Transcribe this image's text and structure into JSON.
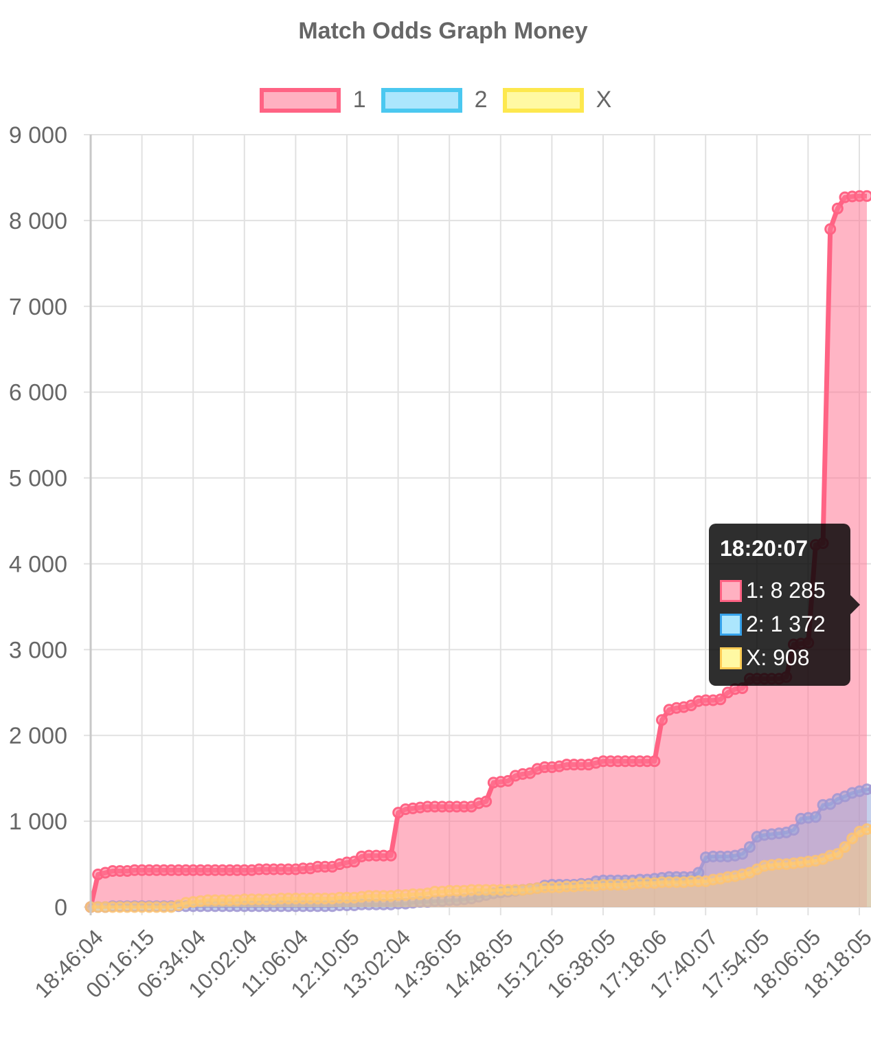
{
  "chart_data": {
    "type": "area",
    "title": "Match Odds Graph Money",
    "xlabel": "",
    "ylabel": "",
    "ylim": [
      0,
      9000
    ],
    "yticks": [
      "0",
      "1 000",
      "2 000",
      "3 000",
      "4 000",
      "5 000",
      "6 000",
      "7 000",
      "8 000",
      "9 000"
    ],
    "x_tick_labels": [
      "18:46:04",
      "00:16:15",
      "06:34:04",
      "10:02:04",
      "11:06:04",
      "12:10:05",
      "13:02:04",
      "14:36:05",
      "14:48:05",
      "15:12:05",
      "16:38:05",
      "17:18:06",
      "17:40:07",
      "17:54:05",
      "18:06:05",
      "18:18:05"
    ],
    "grid": true,
    "legend_position": "top",
    "series": [
      {
        "name": "1",
        "color": "#ff6384",
        "fill": "#ffb1c1",
        "values": [
          0,
          380,
          400,
          420,
          420,
          420,
          430,
          430,
          430,
          430,
          430,
          430,
          430,
          430,
          430,
          430,
          430,
          430,
          430,
          430,
          430,
          430,
          430,
          440,
          440,
          440,
          440,
          440,
          440,
          450,
          450,
          470,
          470,
          470,
          500,
          520,
          530,
          590,
          600,
          600,
          600,
          600,
          1100,
          1140,
          1150,
          1160,
          1170,
          1170,
          1170,
          1170,
          1170,
          1170,
          1170,
          1210,
          1230,
          1450,
          1460,
          1470,
          1530,
          1550,
          1560,
          1610,
          1630,
          1630,
          1640,
          1660,
          1660,
          1660,
          1660,
          1680,
          1700,
          1700,
          1700,
          1700,
          1700,
          1700,
          1700,
          1700,
          2180,
          2300,
          2320,
          2330,
          2350,
          2400,
          2410,
          2410,
          2420,
          2500,
          2540,
          2550,
          2660,
          2660,
          2660,
          2660,
          2660,
          2680,
          3060,
          3070,
          3080,
          4220,
          4240,
          7900,
          8140,
          8270,
          8280,
          8285,
          8285
        ]
      },
      {
        "name": "2",
        "color": "#36a2eb",
        "fill": "#9ad0f5",
        "values": [
          0,
          0,
          0,
          10,
          10,
          10,
          10,
          10,
          10,
          10,
          10,
          10,
          10,
          10,
          10,
          10,
          10,
          10,
          10,
          10,
          10,
          10,
          10,
          10,
          10,
          10,
          10,
          10,
          10,
          10,
          10,
          10,
          10,
          10,
          20,
          20,
          20,
          30,
          30,
          30,
          30,
          30,
          40,
          40,
          50,
          60,
          60,
          70,
          70,
          80,
          80,
          90,
          100,
          120,
          140,
          160,
          170,
          180,
          190,
          200,
          210,
          220,
          250,
          260,
          260,
          260,
          260,
          270,
          270,
          300,
          310,
          310,
          310,
          310,
          310,
          320,
          320,
          330,
          340,
          350,
          350,
          350,
          350,
          400,
          580,
          590,
          590,
          590,
          600,
          620,
          700,
          820,
          840,
          850,
          860,
          870,
          900,
          1030,
          1040,
          1050,
          1190,
          1200,
          1260,
          1290,
          1330,
          1350,
          1372,
          1372
        ]
      },
      {
        "name": "X",
        "color": "#ffcd56",
        "fill": "#fff29c",
        "values": [
          0,
          0,
          0,
          0,
          0,
          0,
          0,
          0,
          0,
          0,
          0,
          0,
          20,
          50,
          60,
          70,
          80,
          80,
          80,
          80,
          80,
          90,
          90,
          90,
          90,
          90,
          100,
          100,
          100,
          100,
          100,
          100,
          100,
          100,
          110,
          110,
          110,
          120,
          130,
          130,
          130,
          130,
          140,
          140,
          150,
          150,
          160,
          180,
          180,
          190,
          190,
          190,
          200,
          200,
          200,
          200,
          200,
          200,
          200,
          200,
          210,
          220,
          230,
          230,
          230,
          240,
          240,
          250,
          250,
          250,
          260,
          260,
          260,
          260,
          270,
          280,
          280,
          280,
          290,
          290,
          290,
          290,
          300,
          300,
          300,
          320,
          330,
          350,
          360,
          380,
          400,
          440,
          480,
          490,
          500,
          500,
          510,
          520,
          530,
          540,
          560,
          600,
          620,
          700,
          800,
          880,
          908,
          908
        ]
      }
    ],
    "tooltip": {
      "title": "18:20:07",
      "rows": [
        {
          "label": "1: 8 285",
          "color": "#ff6384",
          "fill": "#ffb1c1"
        },
        {
          "label": "2: 1 372",
          "color": "#36a2eb",
          "fill": "#9ad0f5"
        },
        {
          "label": "X: 908",
          "color": "#ffcd56",
          "fill": "#fff29c"
        }
      ]
    }
  },
  "legend": {
    "items": [
      {
        "label": "1",
        "color": "#ff6384",
        "fill": "#ffb1c1"
      },
      {
        "label": "2",
        "color": "#36a2eb",
        "fill": "#9ad0f5"
      },
      {
        "label": "X",
        "color": "#ffcd56",
        "fill": "#fff29c"
      }
    ]
  }
}
